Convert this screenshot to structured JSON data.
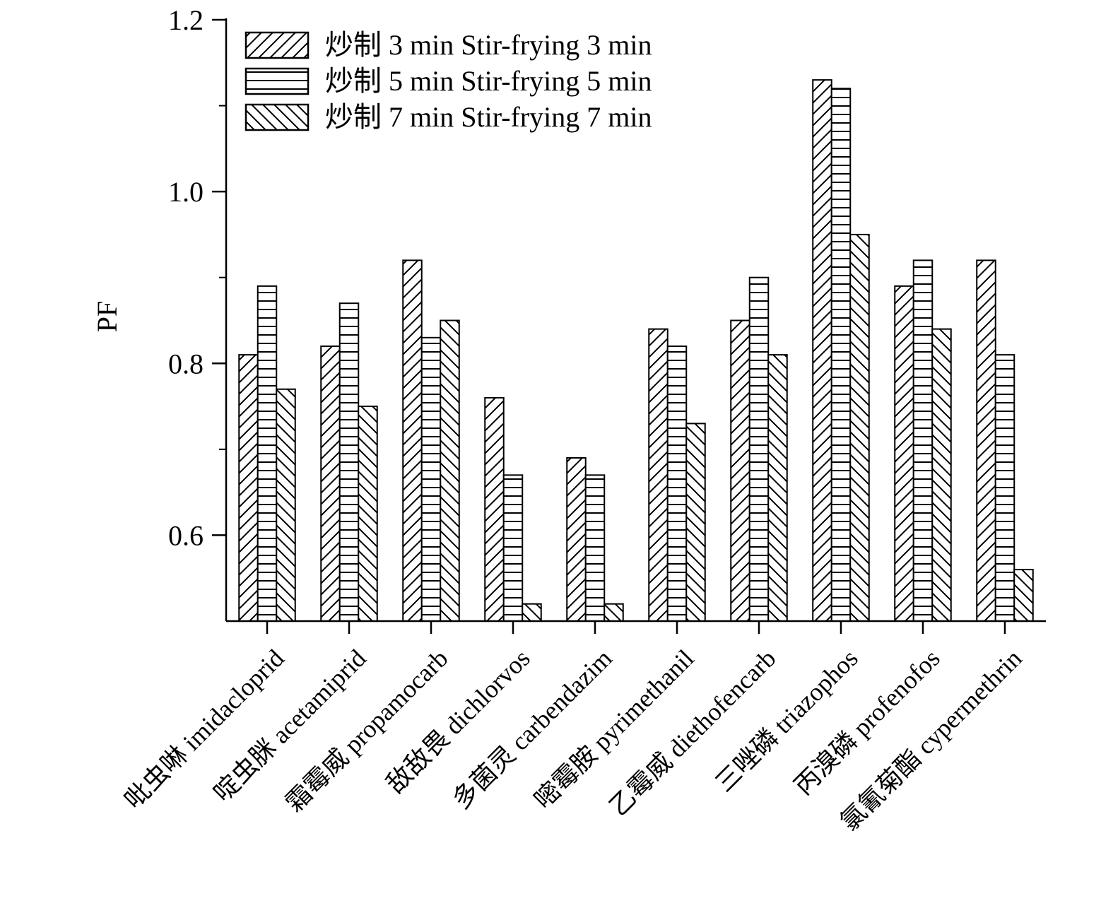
{
  "chart_data": {
    "type": "bar",
    "title": "",
    "xlabel": "",
    "ylabel": "PF",
    "ylim": [
      0.5,
      1.2
    ],
    "yticks": [
      "0.6",
      "0.8",
      "1.0",
      "1.2"
    ],
    "grid": false,
    "legend_position": "top-left",
    "categories": [
      "吡虫啉 imidacloprid",
      "啶虫脒 acetamiprid",
      "霜霉威 propamocarb",
      "敌敌畏 dichlorvos",
      "多菌灵 carbendazim",
      "嘧霉胺 pyrimethanil",
      "乙霉威 diethofencarb",
      "三唑磷 triazophos",
      "丙溴磷 profenofos",
      "氯氰菊酯 cypermethrin"
    ],
    "series": [
      {
        "name": "炒制 3 min Stir-frying 3 min",
        "pattern": "diag-right",
        "values": [
          0.81,
          0.82,
          0.92,
          0.76,
          0.69,
          0.84,
          0.85,
          1.13,
          0.89,
          0.92
        ]
      },
      {
        "name": "炒制 5 min Stir-frying 5 min",
        "pattern": "horizontal",
        "values": [
          0.89,
          0.87,
          0.83,
          0.67,
          0.67,
          0.82,
          0.9,
          1.12,
          0.92,
          0.81
        ]
      },
      {
        "name": "炒制 7 min Stir-frying 7 min",
        "pattern": "diag-left",
        "values": [
          0.77,
          0.75,
          0.85,
          0.52,
          0.52,
          0.73,
          0.81,
          0.95,
          0.84,
          0.56
        ]
      }
    ]
  }
}
